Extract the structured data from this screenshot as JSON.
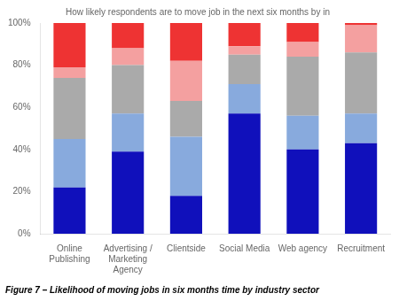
{
  "chart_data": {
    "type": "bar",
    "stacked": true,
    "title": "How likely respondents are to move job in the next six months by in",
    "caption": "Figure 7 – Likelihood of moving jobs in six months time by industry sector",
    "categories": [
      "Online\nPublishing",
      "Advertising /\nMarketing\nAgency",
      "Clientside",
      "Social Media",
      "Web agency",
      "Recruitment"
    ],
    "series": [
      {
        "color": "#1010BB",
        "values": [
          22,
          39,
          18,
          57,
          40,
          43
        ]
      },
      {
        "color": "#88AADD",
        "values": [
          23,
          18,
          28,
          14,
          16,
          14
        ]
      },
      {
        "color": "#AAAAAA",
        "values": [
          29,
          23,
          17,
          14,
          28,
          29
        ]
      },
      {
        "color": "#F4A0A0",
        "values": [
          5,
          8,
          19,
          4,
          7,
          13
        ]
      },
      {
        "color": "#EE3333",
        "values": [
          21,
          12,
          18,
          11,
          9,
          1
        ]
      }
    ],
    "ylim": [
      0,
      100
    ],
    "yticks": [
      {
        "value": 0,
        "label": "0%"
      },
      {
        "value": 20,
        "label": "20%"
      },
      {
        "value": 40,
        "label": "40%"
      },
      {
        "value": 60,
        "label": "60%"
      },
      {
        "value": 80,
        "label": "80%"
      },
      {
        "value": 100,
        "label": "100%"
      }
    ],
    "grid": false
  }
}
